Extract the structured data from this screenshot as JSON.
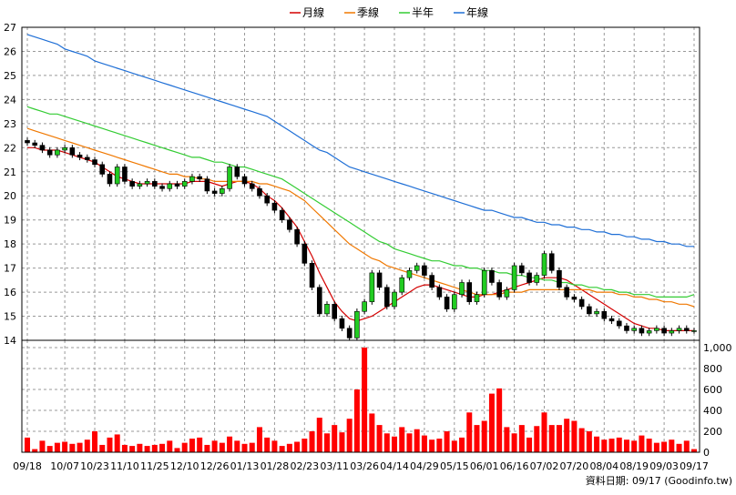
{
  "legend": [
    {
      "label": "月線",
      "color": "#d40000"
    },
    {
      "label": "季線",
      "color": "#f07800"
    },
    {
      "label": "半年",
      "color": "#33cc33"
    },
    {
      "label": "年線",
      "color": "#1f6fd6"
    }
  ],
  "source_note": "資料日期: 09/17  (Goodinfo.tw)",
  "chart_data": [
    {
      "type": "candlestick",
      "title": "",
      "ylim": [
        14,
        27
      ],
      "yticks": [
        "14",
        "15",
        "16",
        "17",
        "18",
        "19",
        "20",
        "21",
        "22",
        "23",
        "24",
        "25",
        "26",
        "27"
      ],
      "grid": true,
      "legend_position": "top-center",
      "x": [
        "09/18",
        "09/20",
        "09/25",
        "09/30",
        "10/04",
        "10/07",
        "10/11",
        "10/16",
        "10/20",
        "10/23",
        "10/27",
        "11/01",
        "11/06",
        "11/10",
        "11/13",
        "11/18",
        "11/22",
        "11/25",
        "11/29",
        "12/04",
        "12/07",
        "12/10",
        "12/14",
        "12/19",
        "12/22",
        "12/26",
        "12/30",
        "01/04",
        "01/09",
        "01/13",
        "01/16",
        "01/21",
        "01/24",
        "01/28",
        "02/04",
        "02/10",
        "02/16",
        "02/23",
        "02/28",
        "03/05",
        "03/08",
        "03/11",
        "03/15",
        "03/20",
        "03/23",
        "03/26",
        "03/31",
        "04/05",
        "04/10",
        "04/14",
        "04/18",
        "04/22",
        "04/25",
        "04/29",
        "05/03",
        "05/08",
        "05/12",
        "05/15",
        "05/20",
        "05/24",
        "05/28",
        "06/01",
        "06/05",
        "06/09",
        "06/13",
        "06/16",
        "06/21",
        "06/25",
        "06/29",
        "07/02",
        "07/07",
        "07/11",
        "07/16",
        "07/20",
        "07/24",
        "07/28",
        "08/01",
        "08/04",
        "08/09",
        "08/13",
        "08/16",
        "08/19",
        "08/23",
        "08/27",
        "08/31",
        "09/03",
        "09/07",
        "09/10",
        "09/14",
        "09/17"
      ],
      "xtick_labels": [
        "09/18",
        "10/07",
        "10/23",
        "11/10",
        "11/25",
        "12/10",
        "12/26",
        "01/13",
        "01/28",
        "02/23",
        "03/11",
        "03/26",
        "04/14",
        "04/29",
        "05/15",
        "06/01",
        "06/16",
        "07/02",
        "07/20",
        "08/04",
        "08/19",
        "09/03",
        "09/17"
      ],
      "close": [
        22.2,
        22.1,
        21.9,
        21.7,
        21.9,
        22.0,
        21.7,
        21.6,
        21.5,
        21.3,
        20.9,
        20.5,
        21.2,
        20.6,
        20.4,
        20.5,
        20.6,
        20.4,
        20.3,
        20.5,
        20.4,
        20.6,
        20.8,
        20.7,
        20.2,
        20.1,
        20.3,
        21.2,
        20.8,
        20.5,
        20.3,
        20.0,
        19.7,
        19.4,
        19.0,
        18.6,
        18.0,
        17.2,
        16.2,
        15.1,
        15.5,
        14.9,
        14.5,
        14.1,
        15.2,
        15.6,
        16.8,
        16.2,
        15.4,
        16.0,
        16.6,
        16.9,
        17.1,
        16.7,
        16.2,
        15.8,
        15.3,
        15.9,
        16.4,
        15.6,
        15.9,
        16.9,
        16.4,
        15.8,
        16.1,
        17.1,
        16.8,
        16.4,
        16.7,
        17.6,
        16.9,
        16.2,
        15.8,
        15.7,
        15.4,
        15.1,
        15.2,
        14.9,
        14.8,
        14.6,
        14.4,
        14.5,
        14.3,
        14.4,
        14.5,
        14.3,
        14.4,
        14.5,
        14.4,
        14.4
      ],
      "series": [
        {
          "name": "月線",
          "values": [
            22.0,
            22.0,
            21.9,
            21.9,
            21.9,
            21.8,
            21.7,
            21.6,
            21.5,
            21.4,
            21.2,
            21.0,
            20.8,
            20.7,
            20.6,
            20.5,
            20.5,
            20.5,
            20.5,
            20.5,
            20.5,
            20.5,
            20.6,
            20.6,
            20.6,
            20.5,
            20.4,
            20.5,
            20.6,
            20.6,
            20.5,
            20.3,
            20.0,
            19.8,
            19.5,
            19.1,
            18.7,
            18.1,
            17.5,
            16.8,
            16.2,
            15.6,
            15.2,
            14.9,
            14.8,
            14.9,
            15.0,
            15.2,
            15.4,
            15.6,
            15.8,
            16.0,
            16.2,
            16.3,
            16.3,
            16.2,
            16.1,
            16.0,
            15.9,
            15.8,
            15.8,
            15.9,
            15.9,
            16.0,
            16.1,
            16.2,
            16.3,
            16.4,
            16.5,
            16.6,
            16.6,
            16.6,
            16.5,
            16.3,
            16.1,
            15.9,
            15.7,
            15.5,
            15.3,
            15.1,
            14.9,
            14.7,
            14.6,
            14.5,
            14.5,
            14.4,
            14.4,
            14.4,
            14.4,
            14.4
          ]
        },
        {
          "name": "季線",
          "values": [
            22.8,
            22.7,
            22.6,
            22.5,
            22.4,
            22.3,
            22.2,
            22.1,
            22.0,
            21.9,
            21.8,
            21.7,
            21.6,
            21.5,
            21.4,
            21.3,
            21.2,
            21.1,
            21.0,
            20.9,
            20.9,
            20.8,
            20.8,
            20.7,
            20.7,
            20.6,
            20.6,
            20.6,
            20.6,
            20.6,
            20.6,
            20.5,
            20.5,
            20.4,
            20.3,
            20.2,
            20.0,
            19.8,
            19.5,
            19.2,
            18.9,
            18.6,
            18.3,
            18.0,
            17.8,
            17.6,
            17.4,
            17.3,
            17.1,
            17.0,
            16.9,
            16.8,
            16.7,
            16.6,
            16.5,
            16.4,
            16.3,
            16.2,
            16.1,
            16.0,
            15.9,
            15.9,
            15.9,
            15.9,
            16.0,
            16.0,
            16.0,
            16.1,
            16.1,
            16.1,
            16.1,
            16.1,
            16.1,
            16.1,
            16.1,
            16.1,
            16.0,
            16.0,
            16.0,
            15.9,
            15.9,
            15.8,
            15.8,
            15.7,
            15.7,
            15.6,
            15.6,
            15.5,
            15.5,
            15.4
          ]
        },
        {
          "name": "半年",
          "values": [
            23.7,
            23.6,
            23.5,
            23.4,
            23.4,
            23.3,
            23.2,
            23.1,
            23.0,
            22.9,
            22.8,
            22.7,
            22.6,
            22.5,
            22.4,
            22.3,
            22.2,
            22.1,
            22.0,
            21.9,
            21.8,
            21.7,
            21.6,
            21.6,
            21.5,
            21.4,
            21.4,
            21.3,
            21.2,
            21.2,
            21.1,
            21.0,
            20.9,
            20.8,
            20.7,
            20.5,
            20.3,
            20.1,
            19.9,
            19.7,
            19.5,
            19.3,
            19.1,
            18.9,
            18.7,
            18.5,
            18.3,
            18.1,
            18.0,
            17.8,
            17.7,
            17.6,
            17.5,
            17.4,
            17.3,
            17.3,
            17.2,
            17.1,
            17.1,
            17.0,
            17.0,
            16.9,
            16.9,
            16.8,
            16.8,
            16.7,
            16.7,
            16.6,
            16.6,
            16.5,
            16.5,
            16.4,
            16.4,
            16.3,
            16.3,
            16.2,
            16.2,
            16.1,
            16.1,
            16.0,
            16.0,
            15.9,
            15.9,
            15.9,
            15.8,
            15.8,
            15.8,
            15.8,
            15.8,
            15.9
          ]
        },
        {
          "name": "年線",
          "values": [
            26.7,
            26.6,
            26.5,
            26.4,
            26.3,
            26.1,
            26.0,
            25.9,
            25.8,
            25.6,
            25.5,
            25.4,
            25.3,
            25.2,
            25.1,
            25.0,
            24.9,
            24.8,
            24.7,
            24.6,
            24.5,
            24.4,
            24.3,
            24.2,
            24.1,
            24.0,
            23.9,
            23.8,
            23.7,
            23.6,
            23.5,
            23.4,
            23.3,
            23.1,
            22.9,
            22.7,
            22.5,
            22.3,
            22.1,
            21.9,
            21.8,
            21.6,
            21.4,
            21.2,
            21.1,
            21.0,
            20.9,
            20.8,
            20.7,
            20.6,
            20.5,
            20.4,
            20.3,
            20.2,
            20.1,
            20.0,
            19.9,
            19.8,
            19.7,
            19.6,
            19.5,
            19.4,
            19.4,
            19.3,
            19.2,
            19.1,
            19.1,
            19.0,
            18.9,
            18.9,
            18.8,
            18.8,
            18.7,
            18.7,
            18.6,
            18.6,
            18.5,
            18.5,
            18.4,
            18.4,
            18.3,
            18.3,
            18.2,
            18.2,
            18.1,
            18.1,
            18.0,
            18.0,
            17.9,
            17.9
          ]
        }
      ]
    },
    {
      "type": "bar",
      "title": "",
      "ylim": [
        0,
        1000
      ],
      "yticks": [
        "0",
        "200",
        "400",
        "600",
        "800",
        "1,000"
      ],
      "grid": true,
      "color": "#ff0000",
      "values": [
        140,
        30,
        110,
        60,
        90,
        100,
        80,
        90,
        120,
        200,
        70,
        140,
        170,
        70,
        60,
        80,
        60,
        70,
        80,
        110,
        40,
        90,
        130,
        140,
        70,
        110,
        90,
        150,
        110,
        80,
        90,
        240,
        140,
        110,
        60,
        80,
        100,
        130,
        200,
        330,
        180,
        260,
        190,
        320,
        600,
        1000,
        370,
        260,
        180,
        150,
        240,
        180,
        220,
        160,
        120,
        130,
        200,
        110,
        140,
        380,
        260,
        300,
        560,
        610,
        240,
        180,
        260,
        140,
        250,
        380,
        260,
        260,
        320,
        300,
        230,
        200,
        150,
        120,
        130,
        140,
        120,
        110,
        160,
        130,
        90,
        100,
        120,
        80,
        110,
        30
      ]
    }
  ]
}
